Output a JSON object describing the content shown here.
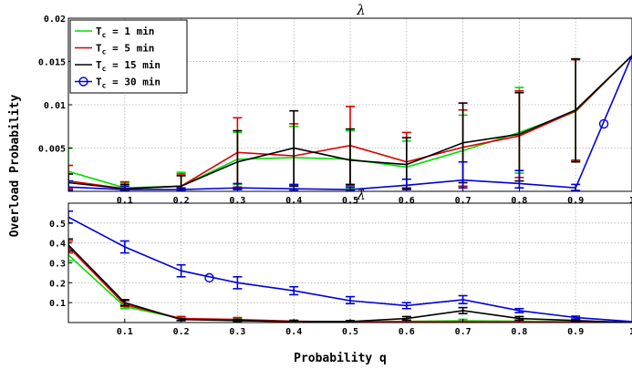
{
  "figure": {
    "ylabel": "Overload Probability",
    "xlabel": "Probability q"
  },
  "chart_data": [
    {
      "type": "line",
      "title": "λ",
      "xlabel": "",
      "ylabel": "",
      "xlim": [
        0,
        1
      ],
      "ylim": [
        0,
        0.02
      ],
      "xticks": [
        0.1,
        0.2,
        0.3,
        0.4,
        0.5,
        0.6,
        0.7,
        0.8,
        0.9,
        1
      ],
      "xtick_labels": [
        "0.1",
        "0.2",
        "0.3",
        "0.4",
        "0.5",
        "0.6",
        "0.7",
        "0.8",
        "0.9",
        "1"
      ],
      "yticks": [
        0.005,
        0.01,
        0.015,
        0.02
      ],
      "ytick_labels": [
        "0.005",
        "0.01",
        "0.015",
        "0.02"
      ],
      "grid": true,
      "legend_position": "top-left",
      "x": [
        0.0,
        0.1,
        0.2,
        0.3,
        0.4,
        0.5,
        0.6,
        0.7,
        0.8,
        0.9,
        1.0
      ],
      "series": [
        {
          "name": "T_c = 1 min",
          "color": "#00dd00",
          "marker": "",
          "values": [
            0.0023,
            0.0004,
            0.0006,
            0.0037,
            0.0039,
            0.0037,
            0.0028,
            0.0047,
            0.0068,
            0.0092,
            0.0157
          ],
          "err_low": [
            0.0003,
            0.0002,
            0.0003,
            0.0008,
            0.0007,
            0.0004,
            0.0007,
            0.0006,
            0.0021,
            0.0035,
            null
          ],
          "err_high": [
            0.005,
            0.001,
            0.0022,
            0.0068,
            0.0075,
            0.007,
            0.0058,
            0.0088,
            0.012,
            0.0153,
            null
          ]
        },
        {
          "name": "T_c = 5 min",
          "color": "#dd0000",
          "marker": "",
          "values": [
            0.0012,
            0.0003,
            0.0006,
            0.0045,
            0.0041,
            0.0053,
            0.0034,
            0.0051,
            0.0064,
            0.0093,
            0.0157
          ],
          "err_low": [
            0.0003,
            0.0002,
            0.0003,
            0.0005,
            0.0006,
            0.0007,
            0.0004,
            0.0006,
            0.0016,
            0.0036,
            null
          ],
          "err_high": [
            0.003,
            0.0011,
            0.002,
            0.0085,
            0.0078,
            0.0098,
            0.0068,
            0.0094,
            0.0116,
            0.0152,
            null
          ]
        },
        {
          "name": "T_c = 15 min",
          "color": "#000000",
          "marker": "",
          "values": [
            0.001,
            0.0003,
            0.0006,
            0.0034,
            0.005,
            0.0036,
            0.0031,
            0.0056,
            0.0066,
            0.0094,
            0.0157
          ],
          "err_low": [
            0.0001,
            0.0001,
            0.0002,
            0.0003,
            0.0006,
            0.0008,
            0.0003,
            0.001,
            0.0012,
            0.0034,
            null
          ],
          "err_high": [
            0.002,
            0.0008,
            0.0018,
            0.007,
            0.0093,
            0.0072,
            0.0062,
            0.0102,
            0.0114,
            0.0153,
            null
          ]
        },
        {
          "name": "T_c = 30 min",
          "color": "#0000dd",
          "marker": "o",
          "values": [
            0.0005,
            0.0002,
            0.0002,
            0.0004,
            0.0003,
            0.0002,
            0.0007,
            0.0013,
            0.0009,
            0.0004,
            0.0157
          ],
          "err_low": [
            0.0001,
            0.0001,
            0.0001,
            0.0002,
            0.0001,
            0.0001,
            0.0002,
            0.0004,
            0.0004,
            0.0001,
            null
          ],
          "err_high": [
            0.0012,
            0.0006,
            0.0004,
            0.0009,
            0.0008,
            0.0005,
            0.0014,
            0.0034,
            0.0024,
            0.0008,
            null
          ],
          "marker_points": [
            [
              0.95,
              0.0078
            ]
          ]
        }
      ]
    },
    {
      "type": "line",
      "title": "λ̂",
      "xlabel": "Probability q",
      "ylabel": "",
      "xlim": [
        0,
        1
      ],
      "ylim": [
        0,
        0.6
      ],
      "xticks": [
        0.1,
        0.2,
        0.3,
        0.4,
        0.5,
        0.6,
        0.7,
        0.8,
        0.9,
        1
      ],
      "xtick_labels": [
        "0.1",
        "0.2",
        "0.3",
        "0.4",
        "0.5",
        "0.6",
        "0.7",
        "0.8",
        "0.9",
        "1"
      ],
      "yticks": [
        0.1,
        0.2,
        0.3,
        0.4,
        0.5
      ],
      "ytick_labels": [
        "0.1",
        "0.2",
        "0.3",
        "0.4",
        "0.5"
      ],
      "grid": true,
      "x": [
        0.0,
        0.1,
        0.2,
        0.3,
        0.4,
        0.5,
        0.6,
        0.7,
        0.8,
        0.9,
        1.0
      ],
      "series": [
        {
          "name": "T_c = 1 min",
          "color": "#00dd00",
          "marker": "",
          "values": [
            0.34,
            0.08,
            0.02,
            0.01,
            0.005,
            0.003,
            0.006,
            0.009,
            0.007,
            0.004,
            0.0
          ],
          "err_low": [
            0.31,
            0.07,
            0.01,
            0.005,
            0.002,
            0.001,
            0.003,
            0.004,
            0.003,
            0.002,
            null
          ],
          "err_high": [
            0.37,
            0.09,
            0.03,
            0.02,
            0.01,
            0.006,
            0.012,
            0.016,
            0.013,
            0.008,
            null
          ]
        },
        {
          "name": "T_c = 5 min",
          "color": "#dd0000",
          "marker": "",
          "values": [
            0.38,
            0.09,
            0.02,
            0.015,
            0.007,
            0.003,
            0.004,
            0.003,
            0.003,
            0.002,
            0.0
          ],
          "err_low": [
            0.35,
            0.08,
            0.01,
            0.01,
            0.003,
            0.001,
            0.002,
            0.001,
            0.001,
            0.001,
            null
          ],
          "err_high": [
            0.41,
            0.11,
            0.03,
            0.025,
            0.012,
            0.006,
            0.008,
            0.006,
            0.006,
            0.004,
            null
          ]
        },
        {
          "name": "T_c = 15 min",
          "color": "#000000",
          "marker": "",
          "values": [
            0.39,
            0.1,
            0.015,
            0.01,
            0.005,
            0.005,
            0.02,
            0.06,
            0.02,
            0.01,
            0.0
          ],
          "err_low": [
            0.36,
            0.085,
            0.01,
            0.005,
            0.002,
            0.002,
            0.012,
            0.045,
            0.012,
            0.005,
            null
          ],
          "err_high": [
            0.42,
            0.115,
            0.02,
            0.015,
            0.01,
            0.01,
            0.03,
            0.075,
            0.03,
            0.016,
            null
          ]
        },
        {
          "name": "T_c = 30 min",
          "color": "#0000dd",
          "marker": "o",
          "values": [
            0.53,
            0.38,
            0.26,
            0.2,
            0.16,
            0.11,
            0.085,
            0.115,
            0.06,
            0.025,
            0.005
          ],
          "err_low": [
            0.5,
            0.35,
            0.23,
            0.17,
            0.14,
            0.095,
            0.07,
            0.095,
            0.05,
            0.018,
            null
          ],
          "err_high": [
            0.56,
            0.41,
            0.29,
            0.23,
            0.18,
            0.13,
            0.1,
            0.135,
            0.07,
            0.032,
            null
          ],
          "marker_points": [
            [
              0.25,
              0.225
            ]
          ]
        }
      ]
    }
  ]
}
